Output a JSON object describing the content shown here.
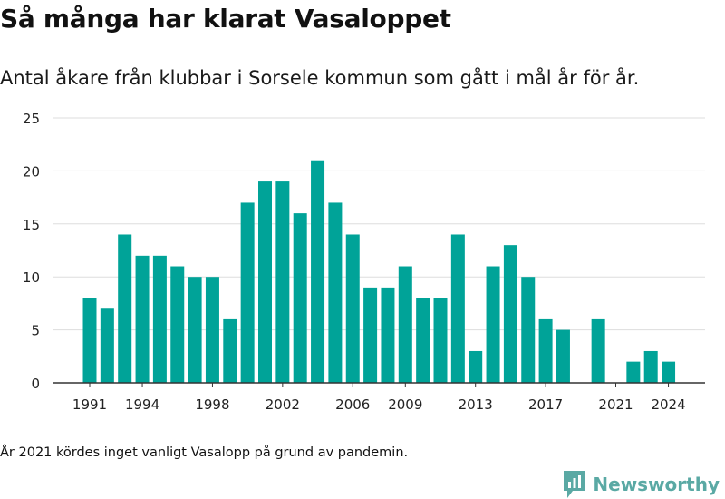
{
  "title": "Så många har klarat Vasaloppet",
  "subtitle": "Antal åkare från klubbar i Sorsele kommun som gått i mål år för år.",
  "note": "År 2021 kördes inget vanligt Vasalopp på grund av pandemin.",
  "logo_text": "Newsworthy",
  "colors": {
    "bar": "#00a398",
    "grid": "#dddddd",
    "axis": "#333333",
    "brand": "#5aa9a4"
  },
  "chart_data": {
    "type": "bar",
    "title": "Så många har klarat Vasaloppet",
    "xlabel": "",
    "ylabel": "",
    "ylim": [
      0,
      25
    ],
    "yticks": [
      0,
      5,
      10,
      15,
      20,
      25
    ],
    "xticks": [
      "1991",
      "1994",
      "1998",
      "2002",
      "2006",
      "2009",
      "2013",
      "2017",
      "2021",
      "2024"
    ],
    "categories": [
      "1991",
      "1992",
      "1993",
      "1994",
      "1995",
      "1996",
      "1997",
      "1998",
      "1999",
      "2000",
      "2001",
      "2002",
      "2003",
      "2004",
      "2005",
      "2006",
      "2007",
      "2008",
      "2009",
      "2010",
      "2011",
      "2012",
      "2013",
      "2014",
      "2015",
      "2016",
      "2017",
      "2018",
      "2019",
      "2020",
      "2021",
      "2022",
      "2023",
      "2024"
    ],
    "values": [
      8,
      7,
      14,
      12,
      12,
      11,
      10,
      10,
      6,
      17,
      19,
      19,
      16,
      21,
      17,
      14,
      9,
      9,
      11,
      8,
      8,
      14,
      3,
      11,
      13,
      10,
      6,
      5,
      0,
      6,
      0,
      2,
      3,
      2
    ],
    "grid": true
  }
}
